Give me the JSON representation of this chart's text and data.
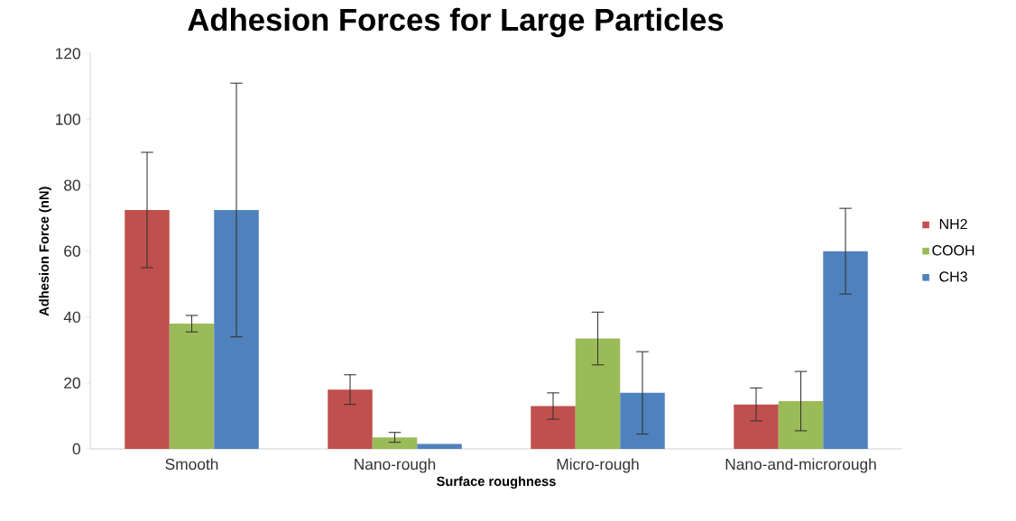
{
  "chart_data": {
    "type": "bar",
    "title": "Adhesion Forces for Large Particles",
    "xlabel": "Surface roughness",
    "ylabel": "Adhesion Force (nN)",
    "categories": [
      "Smooth",
      "Nano-rough",
      "Micro-rough",
      "Nano-and-microrough"
    ],
    "series": [
      {
        "name": "NH2",
        "color": "#c0504d",
        "values": [
          72.5,
          18,
          13,
          13.5
        ],
        "errors": [
          17.5,
          4.5,
          4,
          5
        ]
      },
      {
        "name": "COOH",
        "color": "#9bbb59",
        "values": [
          38,
          3.5,
          33.5,
          14.5
        ],
        "errors": [
          2.5,
          1.5,
          8,
          9
        ]
      },
      {
        "name": "CH3",
        "color": "#4f81bd",
        "values": [
          72.5,
          1.5,
          17,
          60
        ],
        "errors": [
          38.5,
          null,
          12.5,
          13
        ]
      }
    ],
    "ylim": [
      0,
      120
    ],
    "yticks": [
      0,
      20,
      40,
      60,
      80,
      100,
      120
    ],
    "grid": false,
    "legend": "right"
  }
}
